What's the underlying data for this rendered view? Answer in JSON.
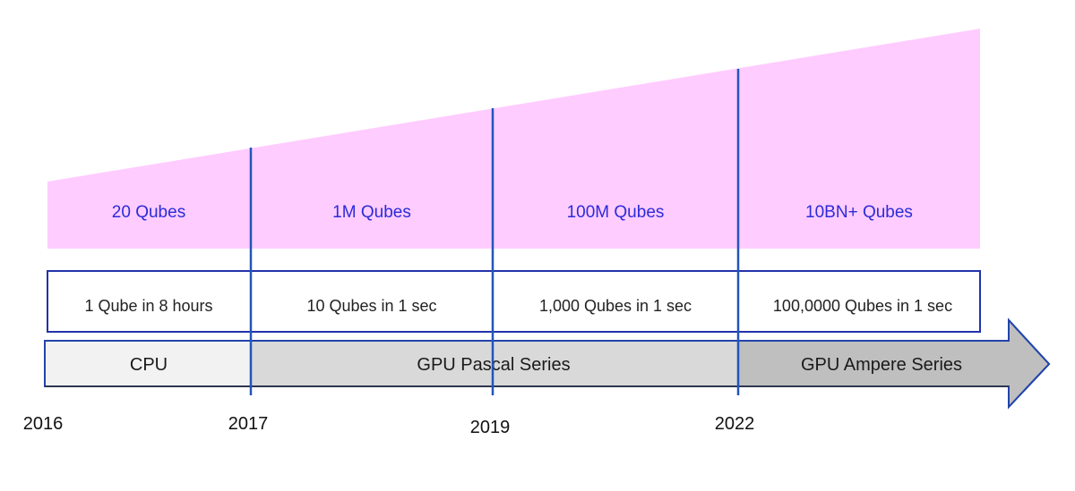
{
  "capacity": [
    "20 Qubes",
    "1M Qubes",
    "100M Qubes",
    "10BN+ Qubes"
  ],
  "speed": [
    "1 Qube in 8 hours",
    "10 Qubes in 1 sec",
    "1,000 Qubes in 1 sec",
    "100,0000 Qubes in 1 sec"
  ],
  "hardware": [
    "CPU",
    "GPU Pascal Series",
    "GPU Ampere Series"
  ],
  "years": [
    "2016",
    "2017",
    "2019",
    "2022"
  ],
  "colors": {
    "wedge": "#ffccff",
    "divider": "#2255bb",
    "box_border": "#2233aa",
    "cpu_fill": "#f2f2f2",
    "pascal_fill": "#d9d9d9",
    "ampere_fill": "#bfbfbf"
  }
}
